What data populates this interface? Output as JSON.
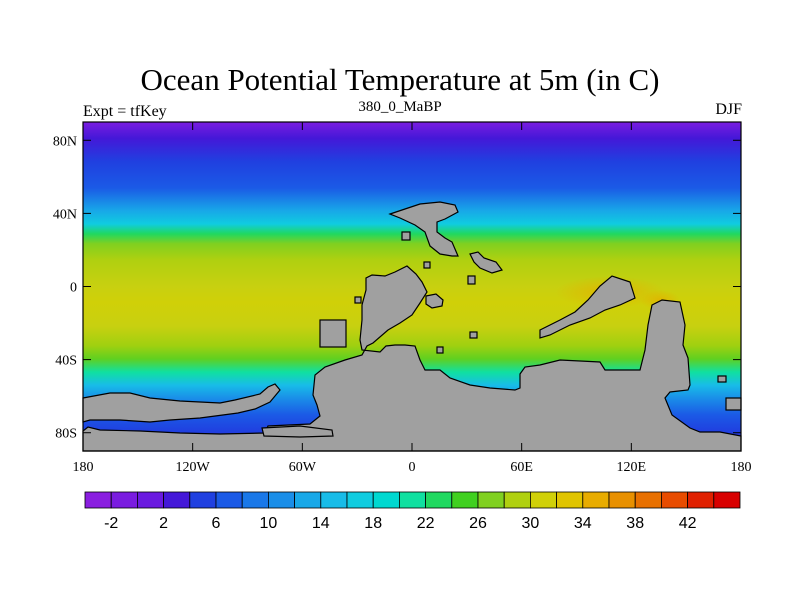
{
  "header": {
    "title": "Ocean Potential Temperature at 5m (in C)",
    "subtitle": "380_0_MaBP",
    "left_label": "Expt = tfKey",
    "right_label": "DJF"
  },
  "map": {
    "lon_range": [
      -180,
      180
    ],
    "lat_range": [
      -90,
      90
    ],
    "x_ticks": [
      {
        "lon": -180,
        "label": "180"
      },
      {
        "lon": -120,
        "label": "120W"
      },
      {
        "lon": -60,
        "label": "60W"
      },
      {
        "lon": 0,
        "label": "0"
      },
      {
        "lon": 60,
        "label": "60E"
      },
      {
        "lon": 120,
        "label": "120E"
      },
      {
        "lon": 180,
        "label": "180"
      }
    ],
    "y_ticks": [
      {
        "lat": 80,
        "label": "80N"
      },
      {
        "lat": 40,
        "label": "40N"
      },
      {
        "lat": 0,
        "label": "0"
      },
      {
        "lat": -40,
        "label": "40S"
      },
      {
        "lat": -80,
        "label": "80S"
      }
    ],
    "land_color": "#a0a0a0"
  },
  "colorbar": {
    "labels": [
      "-2",
      "2",
      "6",
      "10",
      "14",
      "18",
      "22",
      "26",
      "30",
      "34",
      "38",
      "42"
    ],
    "colors": [
      "#8a1ee0",
      "#7a1ce0",
      "#6a1ae0",
      "#4418d8",
      "#2040e0",
      "#1b5ae6",
      "#1a78e8",
      "#1a8ee8",
      "#18a8e8",
      "#18bce8",
      "#10cce0",
      "#00d8d0",
      "#10e0a0",
      "#20d860",
      "#40d020",
      "#80d020",
      "#b0d010",
      "#d0d008",
      "#e0c400",
      "#e8ac00",
      "#e89000",
      "#e87000",
      "#e84c00",
      "#e02000",
      "#d80000"
    ]
  }
}
